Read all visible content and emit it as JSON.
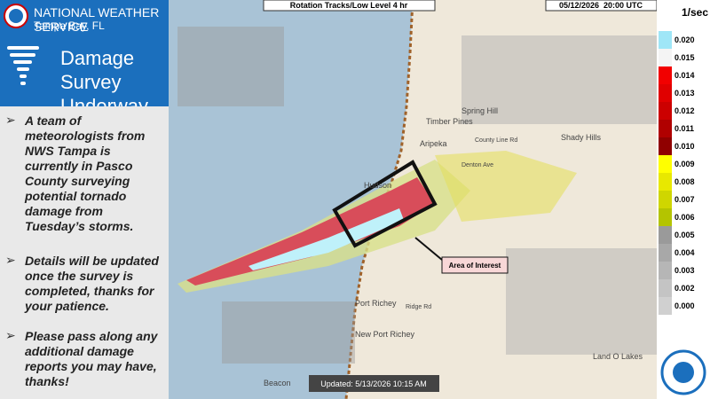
{
  "header": {
    "agency": "NATIONAL WEATHER SERVICE",
    "office": "Tampa Bay, FL",
    "title": "Damage Survey Underway"
  },
  "bullets": [
    "A team of meteorologists from NWS Tampa is currently in Pasco County surveying potential tornado damage from Tuesday’s storms.",
    "Details will be updated once the survey is completed, thanks for your patience.",
    "Please pass along any additional damage reports you may have, thanks!"
  ],
  "map": {
    "product": "Rotation Tracks/Low Level 4 hr",
    "valid_time": "05/12/2026  20:00 UTC",
    "updated": "Updated: 5/13/2026 10:15 AM",
    "annotation": "Area of Interest",
    "labels": [
      "Timber Pines",
      "Spring Hill",
      "Aripeka",
      "Hudson",
      "Shady Hills",
      "Port Richey",
      "New Port Richey",
      "Land O Lakes",
      "Beacon",
      "County Line Rd",
      "Denton Ave",
      "Ridge Rd"
    ]
  },
  "color_scale": {
    "unit": "1/sec",
    "ticks": [
      {
        "value": 0.02,
        "label": "0.020"
      },
      {
        "value": 0.015,
        "label": "0.015"
      },
      {
        "value": 0.014,
        "label": "0.014"
      },
      {
        "value": 0.013,
        "label": "0.013"
      },
      {
        "value": 0.012,
        "label": "0.012"
      },
      {
        "value": 0.011,
        "label": "0.011"
      },
      {
        "value": 0.01,
        "label": "0.010"
      },
      {
        "value": 0.009,
        "label": "0.009"
      },
      {
        "value": 0.008,
        "label": "0.008"
      },
      {
        "value": 0.007,
        "label": "0.007"
      },
      {
        "value": 0.006,
        "label": "0.006"
      },
      {
        "value": 0.005,
        "label": "0.005"
      },
      {
        "value": 0.004,
        "label": "0.004"
      },
      {
        "value": 0.003,
        "label": "0.003"
      },
      {
        "value": 0.002,
        "label": "0.002"
      },
      {
        "value": 0.0,
        "label": "0.000"
      }
    ],
    "colors": [
      "#9fe6f7",
      "#f4f4f4",
      "#f20000",
      "#e00000",
      "#cc0000",
      "#b00000",
      "#900000",
      "#ffff00",
      "#e8e800",
      "#cfd600",
      "#b4c400",
      "#9a9a9a",
      "#a8a8a8",
      "#b6b6b6",
      "#c4c4c4",
      "#d0d0d0"
    ]
  }
}
